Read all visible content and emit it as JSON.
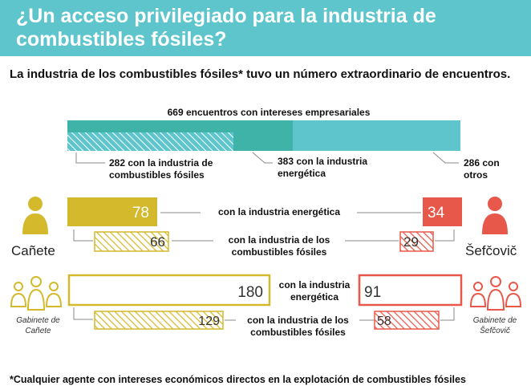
{
  "header": {
    "title": "¿Un acceso privilegiado para la industria de combustibles fósiles?"
  },
  "subtitle": "La industria de los combustibles fósiles* tuvo un número extraordinario de encuentros.",
  "colors": {
    "teal": "#5ec5cc",
    "teal_dark": "#3fb3a8",
    "olive": "#d4b92c",
    "red": "#e8584a",
    "person_olive": "#d4b92c",
    "person_red": "#e8584a"
  },
  "icons": {
    "canete": "person-icon",
    "sefcovic": "person-icon",
    "canete_cabinet": "group-icon",
    "sefcovic_cabinet": "group-icon"
  },
  "people": {
    "canete": "Cañete",
    "sefcovic": "Šefčovič",
    "canete_cabinet": "Gabinete de Cañete",
    "sefcovic_cabinet": "Gabinete de Šefčovič"
  },
  "chart_data": {
    "type": "bar",
    "total": {
      "title": "669 encuentros con intereses empresariales",
      "total": 669,
      "segments": [
        {
          "name": "fossil",
          "value": 282,
          "label": "282 con la industria de combustibles fósiles"
        },
        {
          "name": "energy",
          "value": 383,
          "label": "383 con la industria energética"
        },
        {
          "name": "others",
          "value": 286,
          "label": "286 con otros"
        }
      ]
    },
    "comparisons": [
      {
        "group": "Cañete",
        "category": "con la industria energética",
        "left": 78,
        "right": 34,
        "right_group": "Šefčovič"
      },
      {
        "group": "Cañete",
        "category": "con la industria de los combustibles fósiles",
        "left": 66,
        "right": 29,
        "right_group": "Šefčovič"
      },
      {
        "group": "Gabinete de Cañete",
        "category": "con la industria energética",
        "left": 180,
        "right": 91,
        "right_group": "Gabinete de Šefčovič"
      },
      {
        "group": "Gabinete de Cañete",
        "category": "con la industria de los combustibles fósiles",
        "left": 129,
        "right": 58,
        "right_group": "Gabinete de Šefčovič"
      }
    ]
  },
  "footnote": "*Cualquier agente con intereses económicos directos en la explotación de combustibles fósiles"
}
